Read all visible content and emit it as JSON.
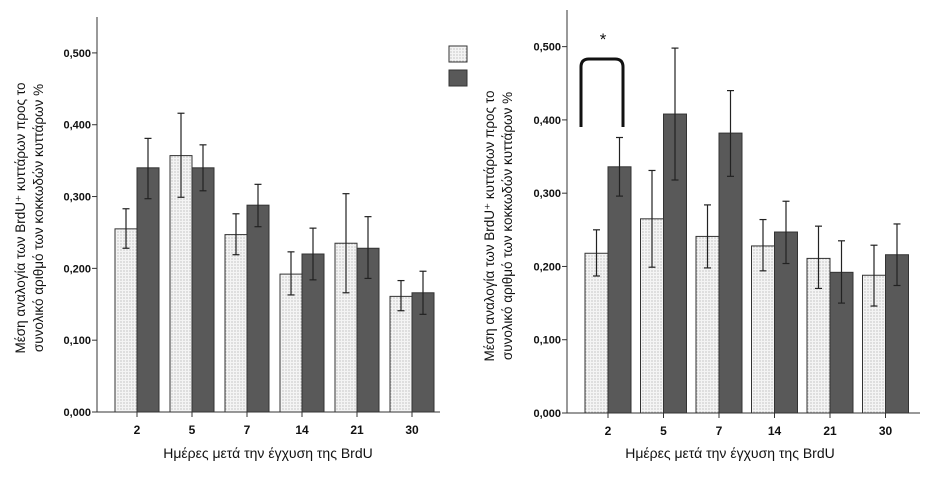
{
  "chart_data": [
    {
      "type": "bar",
      "categories": [
        "2",
        "5",
        "7",
        "14",
        "21",
        "30"
      ],
      "xlabel": "Ημέρες μετά την έγχυση της BrdU",
      "ylabel_lines": [
        "Μέση αναλογία των BrdU⁺ κυττάρων προς το",
        "συνολικό αριθμό των κοκκωδών κυττάρων %"
      ],
      "ylim": [
        0,
        0.55
      ],
      "yticks": [
        0,
        0.1,
        0.2,
        0.3,
        0.4,
        0.5
      ],
      "ytick_labels": [
        "0,000",
        "0,100",
        "0,200",
        "0,300",
        "0,400",
        "0,500"
      ],
      "series": [
        {
          "values": [
            0.255,
            0.357,
            0.247,
            0.192,
            0.235,
            0.161
          ],
          "err_low": [
            0.228,
            0.299,
            0.219,
            0.163,
            0.166,
            0.141
          ],
          "err_high": [
            0.283,
            0.416,
            0.276,
            0.223,
            0.304,
            0.183
          ],
          "pattern": "dots"
        },
        {
          "values": [
            0.34,
            0.34,
            0.288,
            0.22,
            0.228,
            0.166
          ],
          "err_low": [
            0.297,
            0.308,
            0.258,
            0.184,
            0.186,
            0.136
          ],
          "err_high": [
            0.381,
            0.372,
            0.317,
            0.256,
            0.272,
            0.196
          ],
          "pattern": "solid"
        }
      ],
      "legend_placement": "top-right",
      "grid": false
    },
    {
      "type": "bar",
      "categories": [
        "2",
        "5",
        "7",
        "14",
        "21",
        "30"
      ],
      "xlabel": "Ημέρες μετά την έγχυση της BrdU",
      "ylabel_lines": [
        "Μέση αναλογία των BrdU⁺ κυττάρων προς το",
        "συνολικό αριθμό των κοκκωδών κυττάρων %"
      ],
      "ylim": [
        0,
        0.55
      ],
      "yticks": [
        0,
        0.1,
        0.2,
        0.3,
        0.4,
        0.5
      ],
      "ytick_labels": [
        "0,000",
        "0,100",
        "0,200",
        "0,300",
        "0,400",
        "0,500"
      ],
      "series": [
        {
          "values": [
            0.218,
            0.265,
            0.241,
            0.228,
            0.211,
            0.188
          ],
          "err_low": [
            0.187,
            0.199,
            0.198,
            0.194,
            0.17,
            0.146
          ],
          "err_high": [
            0.25,
            0.331,
            0.284,
            0.264,
            0.255,
            0.229
          ],
          "pattern": "dots"
        },
        {
          "values": [
            0.336,
            0.408,
            0.382,
            0.247,
            0.192,
            0.216
          ],
          "err_low": [
            0.296,
            0.318,
            0.323,
            0.204,
            0.15,
            0.174
          ],
          "err_high": [
            0.376,
            0.498,
            0.44,
            0.289,
            0.235,
            0.258
          ],
          "pattern": "solid"
        }
      ],
      "significance": {
        "category": "2",
        "marker": "*"
      },
      "grid": false
    }
  ],
  "colors": {
    "bar_light": "#f2f2f2",
    "bar_dark": "#595959",
    "axis": "#333333"
  }
}
